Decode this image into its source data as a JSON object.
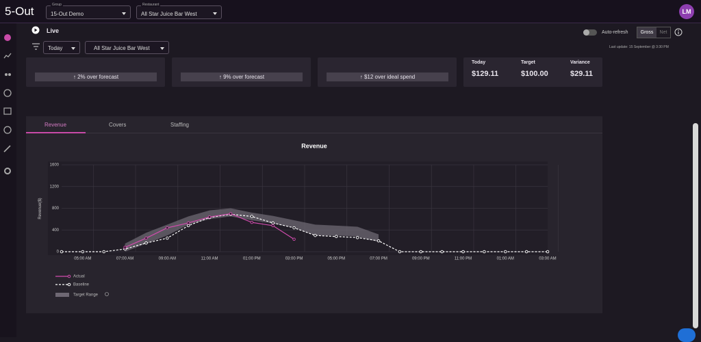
{
  "header": {
    "logo": "5-Out",
    "group_label": "Group",
    "group": "15-Out Demo",
    "restaurant_label": "Restaurant",
    "restaurant": "All Star Juice Bar West",
    "avatar": "LM"
  },
  "toolbar": {
    "live": "Live",
    "period": "Today",
    "location": "All Star Juice Bar West",
    "auto_refresh": "Auto-refresh",
    "gross": "Gross",
    "net": "Net",
    "last_update": "Last update: 15 September @ 3:30 PM"
  },
  "cards": [
    "2% over forecast",
    "9% over forecast",
    "$12 over ideal spend"
  ],
  "summary": [
    {
      "label": "Today",
      "value": "$129.11"
    },
    {
      "label": "Target",
      "value": "$100.00"
    },
    {
      "label": "Variance",
      "value": "$29.11"
    }
  ],
  "tabs": [
    "Revenue",
    "Covers",
    "Staffing"
  ],
  "chart_data": {
    "type": "line",
    "title": "Revenue",
    "y_label": "Revenue($)",
    "categories": [
      null,
      "05:00 AM",
      null,
      "07:00 AM",
      null,
      "09:00 AM",
      null,
      "11:00 AM",
      null,
      "01:00 PM",
      null,
      "03:00 PM",
      null,
      "05:00 PM",
      null,
      "07:00 PM",
      null,
      "09:00 PM",
      null,
      "11:00 PM",
      null,
      "01:00 AM",
      null,
      "03:00 AM"
    ],
    "ylim": [
      0,
      1600
    ],
    "yticks": [
      0,
      400,
      800,
      1200,
      1600
    ],
    "grid": true,
    "series": [
      {
        "name": "Actual",
        "color": "#d24cae",
        "dashed": false,
        "values": [
          null,
          null,
          null,
          80,
          250,
          440,
          530,
          640,
          700,
          540,
          480,
          230,
          null,
          null,
          null,
          null,
          null,
          null,
          null,
          null,
          null,
          null,
          null,
          null
        ]
      },
      {
        "name": "Baseline",
        "color": "#ffffff",
        "dashed": true,
        "values": [
          0,
          0,
          0,
          50,
          160,
          250,
          480,
          630,
          690,
          650,
          530,
          440,
          300,
          280,
          260,
          200,
          0,
          0,
          0,
          0,
          0,
          0,
          0,
          0
        ]
      }
    ],
    "target_range": {
      "name": "Target Range",
      "color": "#6e6873",
      "low": [
        null,
        null,
        null,
        0,
        150,
        300,
        500,
        600,
        650,
        580,
        520,
        440,
        300,
        300,
        280,
        180,
        null,
        null,
        null,
        null,
        null,
        null,
        null,
        null
      ],
      "high": [
        null,
        null,
        null,
        150,
        350,
        500,
        650,
        760,
        800,
        720,
        660,
        580,
        500,
        480,
        460,
        320,
        null,
        null,
        null,
        null,
        null,
        null,
        null,
        null
      ]
    }
  }
}
